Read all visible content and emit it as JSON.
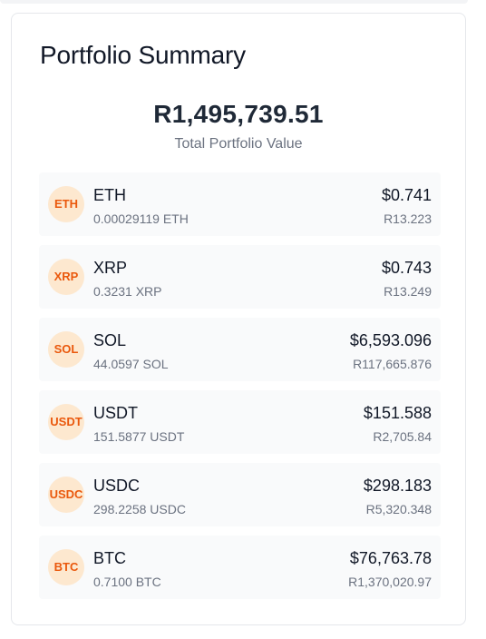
{
  "summary": {
    "title": "Portfolio Summary",
    "total_value": "R1,495,739.51",
    "total_label": "Total Portfolio Value"
  },
  "assets": [
    {
      "icon_text": "ETH",
      "symbol": "ETH",
      "amount": "0.00029119 ETH",
      "usd": "$0.741",
      "zar": "R13.223"
    },
    {
      "icon_text": "XRP",
      "symbol": "XRP",
      "amount": "0.3231 XRP",
      "usd": "$0.743",
      "zar": "R13.249"
    },
    {
      "icon_text": "SOL",
      "symbol": "SOL",
      "amount": "44.0597 SOL",
      "usd": "$6,593.096",
      "zar": "R117,665.876"
    },
    {
      "icon_text": "USDT",
      "symbol": "USDT",
      "amount": "151.5877 USDT",
      "usd": "$151.588",
      "zar": "R2,705.84"
    },
    {
      "icon_text": "USDC",
      "symbol": "USDC",
      "amount": "298.2258 USDC",
      "usd": "$298.183",
      "zar": "R5,320.348"
    },
    {
      "icon_text": "BTC",
      "symbol": "BTC",
      "amount": "0.7100 BTC",
      "usd": "$76,763.78",
      "zar": "R1,370,020.97"
    }
  ],
  "colors": {
    "icon_background": "#fde8cf",
    "icon_text": "#ea580c",
    "row_background": "#f9fafb",
    "primary_text": "#111827",
    "secondary_text": "#6b7280"
  }
}
